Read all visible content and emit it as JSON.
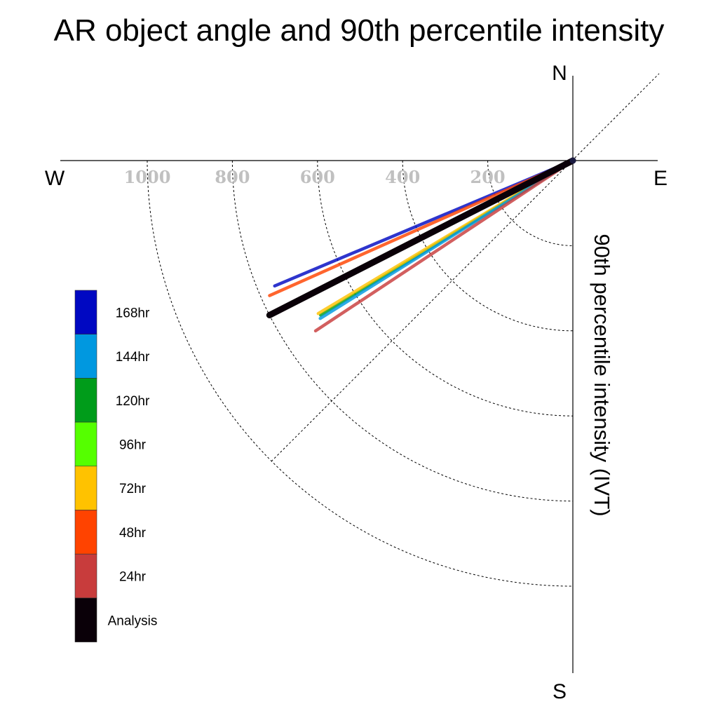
{
  "chart_data": {
    "type": "polar-quadrant-vectors",
    "title": "AR object angle and 90th percentile intensity",
    "radial_label": "90th percentile intensity (IVT)",
    "compass": {
      "north": "N",
      "south": "S",
      "east": "E",
      "west": "W"
    },
    "radial_ticks": [
      200,
      400,
      600,
      800,
      1000
    ],
    "radial_max": 1200,
    "series": [
      {
        "name": "168hr",
        "color": "#0008c2",
        "intensity": 760,
        "angle_below_west_deg": 22.8
      },
      {
        "name": "48hr",
        "color": "#ff4300",
        "intensity": 780,
        "angle_below_west_deg": 24.0
      },
      {
        "name": "Analysis",
        "color": "#0a0008",
        "intensity": 800,
        "angle_below_west_deg": 27.0
      },
      {
        "name": "96hr",
        "color": "#55ff00",
        "intensity": 590,
        "angle_below_west_deg": 27.1
      },
      {
        "name": "120hr",
        "color": "#009c1a",
        "intensity": 695,
        "angle_below_west_deg": 31.5
      },
      {
        "name": "72hr",
        "color": "#ffc200",
        "intensity": 698,
        "angle_below_west_deg": 31.0
      },
      {
        "name": "144hr",
        "color": "#0098e0",
        "intensity": 700,
        "angle_below_west_deg": 32.0
      },
      {
        "name": "24hr",
        "color": "#c83c3c",
        "intensity": 725,
        "angle_below_west_deg": 33.5
      }
    ],
    "legend": [
      {
        "label": "168hr",
        "color": "#0008c2"
      },
      {
        "label": "144hr",
        "color": "#0098e0"
      },
      {
        "label": "120hr",
        "color": "#009c1a"
      },
      {
        "label": "96hr",
        "color": "#55ff00"
      },
      {
        "label": "72hr",
        "color": "#ffc200"
      },
      {
        "label": "48hr",
        "color": "#ff4300"
      },
      {
        "label": "24hr",
        "color": "#c83c3c"
      },
      {
        "label": "Analysis",
        "color": "#0a0008"
      }
    ],
    "grid": true,
    "legend_position": "left"
  }
}
